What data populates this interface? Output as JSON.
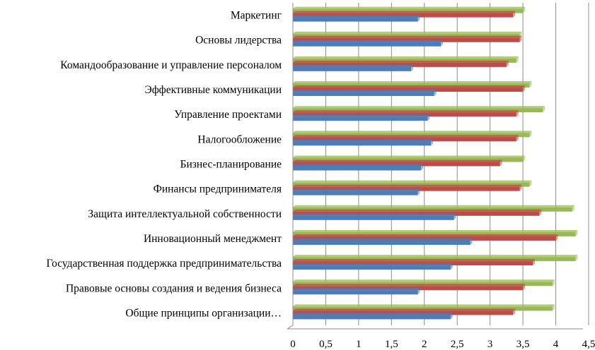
{
  "chart_data": {
    "type": "bar",
    "orientation": "horizontal",
    "title": "",
    "xlabel": "",
    "ylabel": "",
    "xlim": [
      0,
      4.5
    ],
    "xticks": [
      "0",
      "0,5",
      "1",
      "1,5",
      "2",
      "2,5",
      "3",
      "3,5",
      "4",
      "4,5"
    ],
    "grid": true,
    "legend": "none",
    "categories": [
      "Маркетинг",
      "Основы лидерства",
      "Командообразование и управление персоналом",
      "Эффективные коммуникации",
      "Управление проектами",
      "Налогообложение",
      "Бизнес-планирование",
      "Финансы предпринимателя",
      "Защита интеллектуальной собственности",
      "Инновационный менеджмент",
      "Государственная поддержка предпринимательства",
      "Правовые основы создания и ведения бизнеса",
      "Общие принципы организации…"
    ],
    "series": [
      {
        "color": "#4a7ebb",
        "values": [
          1.9,
          2.25,
          1.8,
          2.15,
          2.05,
          2.1,
          1.95,
          1.9,
          2.45,
          2.7,
          2.4,
          1.9,
          2.4
        ]
      },
      {
        "color": "#be4b48",
        "values": [
          3.35,
          3.45,
          3.25,
          3.5,
          3.4,
          3.4,
          3.15,
          3.45,
          3.75,
          4.0,
          3.65,
          3.5,
          3.35
        ]
      },
      {
        "color": "#98b954",
        "values": [
          3.5,
          3.45,
          3.4,
          3.6,
          3.8,
          3.6,
          3.5,
          3.6,
          4.25,
          4.3,
          4.3,
          3.95,
          3.95
        ]
      }
    ]
  }
}
